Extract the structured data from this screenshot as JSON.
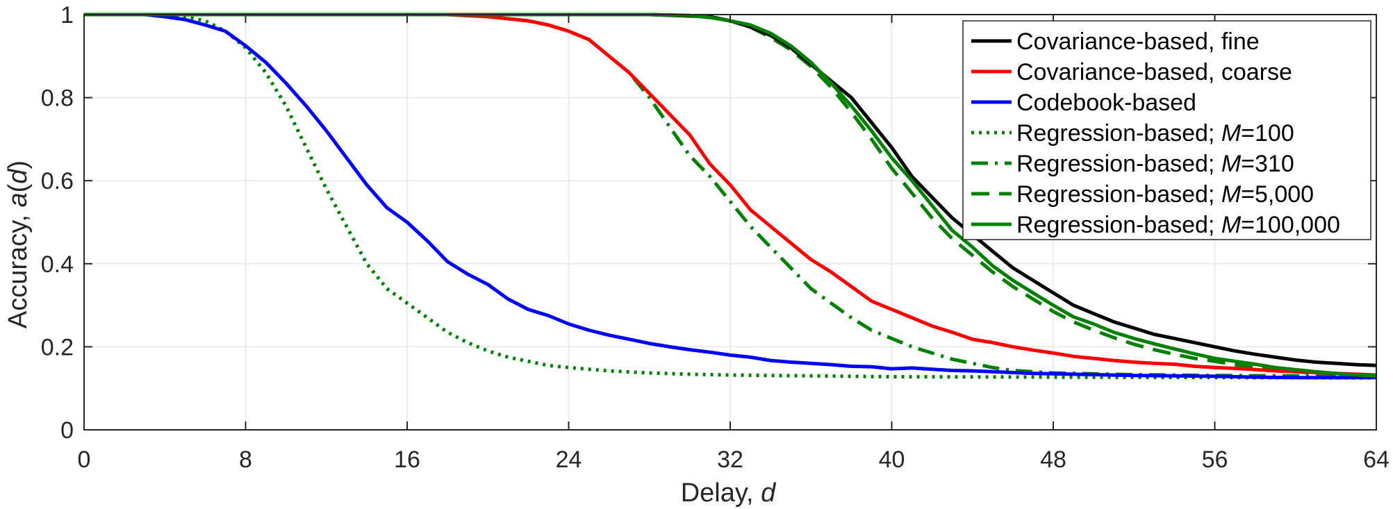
{
  "chart_data": {
    "type": "line",
    "xlabel": "Delay, ",
    "xlabel_italic": "d",
    "ylabel": "Accuracy, ",
    "ylabel_italic": "a",
    "ylabel_paren_open": "(",
    "ylabel_paren_arg": "d",
    "ylabel_paren_close": ")",
    "xlim": [
      0,
      64
    ],
    "ylim": [
      0,
      1
    ],
    "x_ticks": [
      0,
      8,
      16,
      24,
      32,
      40,
      48,
      56,
      64
    ],
    "x_tick_labels": [
      "0",
      "8",
      "16",
      "24",
      "32",
      "40",
      "48",
      "56",
      "64"
    ],
    "y_ticks": [
      0,
      0.2,
      0.4,
      0.6,
      0.8,
      1
    ],
    "y_tick_labels": [
      "0",
      "0.2",
      "0.4",
      "0.6",
      "0.8",
      "1"
    ],
    "grid": true,
    "legend_position": "top-right",
    "series": [
      {
        "name": "Covariance-based, fine",
        "name_italic": "",
        "name_suffix": "",
        "color": "#000000",
        "dash": "solid",
        "x": [
          0,
          20,
          28,
          31,
          32,
          33,
          34,
          35,
          36,
          37,
          38,
          39,
          40,
          41,
          42,
          43,
          44,
          45,
          46,
          47,
          48,
          49,
          50,
          51,
          52,
          53,
          54,
          55,
          56,
          57,
          58,
          59,
          60,
          61,
          62,
          63,
          64
        ],
        "y": [
          1,
          1,
          1,
          0.995,
          0.985,
          0.97,
          0.95,
          0.92,
          0.88,
          0.84,
          0.8,
          0.74,
          0.68,
          0.61,
          0.56,
          0.51,
          0.47,
          0.43,
          0.39,
          0.36,
          0.33,
          0.3,
          0.28,
          0.26,
          0.245,
          0.23,
          0.22,
          0.21,
          0.2,
          0.19,
          0.182,
          0.175,
          0.168,
          0.163,
          0.16,
          0.157,
          0.155
        ]
      },
      {
        "name": "Covariance-based, coarse",
        "name_italic": "",
        "name_suffix": "",
        "color": "#ff0000",
        "dash": "solid",
        "x": [
          0,
          18,
          20,
          22,
          23,
          24,
          25,
          26,
          27,
          28,
          29,
          30,
          31,
          32,
          33,
          34,
          35,
          36,
          37,
          38,
          39,
          40,
          41,
          42,
          43,
          44,
          45,
          46,
          47,
          48,
          49,
          50,
          51,
          52,
          53,
          54,
          55,
          56,
          57,
          58,
          59,
          60,
          61,
          62,
          63,
          64
        ],
        "y": [
          1,
          1,
          0.995,
          0.985,
          0.975,
          0.96,
          0.94,
          0.9,
          0.86,
          0.81,
          0.76,
          0.71,
          0.64,
          0.59,
          0.53,
          0.49,
          0.45,
          0.41,
          0.38,
          0.345,
          0.31,
          0.29,
          0.27,
          0.25,
          0.235,
          0.218,
          0.21,
          0.2,
          0.192,
          0.185,
          0.177,
          0.172,
          0.167,
          0.163,
          0.16,
          0.158,
          0.153,
          0.15,
          0.148,
          0.145,
          0.142,
          0.14,
          0.138,
          0.136,
          0.134,
          0.132
        ]
      },
      {
        "name": "Codebook-based",
        "name_italic": "",
        "name_suffix": "",
        "color": "#0000ff",
        "dash": "solid",
        "x": [
          0,
          3,
          4,
          5,
          6,
          7,
          8,
          9,
          10,
          11,
          12,
          13,
          14,
          15,
          16,
          17,
          18,
          19,
          20,
          21,
          22,
          23,
          24,
          25,
          26,
          27,
          28,
          29,
          30,
          31,
          32,
          33,
          34,
          35,
          36,
          37,
          38,
          39,
          40,
          41,
          42,
          43,
          44,
          45,
          46,
          47,
          48,
          50,
          52,
          54,
          56,
          58,
          60,
          62,
          64
        ],
        "y": [
          1,
          1,
          0.995,
          0.988,
          0.975,
          0.96,
          0.925,
          0.885,
          0.835,
          0.78,
          0.72,
          0.655,
          0.59,
          0.535,
          0.5,
          0.455,
          0.405,
          0.375,
          0.35,
          0.315,
          0.29,
          0.275,
          0.255,
          0.24,
          0.228,
          0.218,
          0.208,
          0.2,
          0.193,
          0.187,
          0.18,
          0.175,
          0.167,
          0.163,
          0.16,
          0.157,
          0.153,
          0.152,
          0.147,
          0.149,
          0.146,
          0.143,
          0.142,
          0.14,
          0.138,
          0.136,
          0.135,
          0.133,
          0.131,
          0.13,
          0.129,
          0.127,
          0.126,
          0.126,
          0.126
        ]
      },
      {
        "name": "Regression-based; ",
        "name_italic": "M",
        "name_suffix": "=100",
        "color": "#008000",
        "dash": "dotted",
        "x": [
          0,
          4,
          5,
          6,
          7,
          8,
          9,
          10,
          11,
          12,
          13,
          14,
          15,
          16,
          17,
          18,
          19,
          20,
          21,
          22,
          23,
          24,
          26,
          28,
          30,
          32,
          36,
          40,
          48,
          56,
          64
        ],
        "y": [
          1,
          1,
          0.995,
          0.985,
          0.96,
          0.92,
          0.86,
          0.78,
          0.68,
          0.58,
          0.49,
          0.4,
          0.34,
          0.305,
          0.27,
          0.235,
          0.21,
          0.19,
          0.175,
          0.165,
          0.155,
          0.15,
          0.142,
          0.137,
          0.134,
          0.132,
          0.13,
          0.128,
          0.127,
          0.126,
          0.125
        ]
      },
      {
        "name": "Regression-based; ",
        "name_italic": "M",
        "name_suffix": "=310",
        "color": "#008000",
        "dash": "dashdot",
        "x": [
          0,
          18,
          20,
          22,
          23,
          24,
          25,
          26,
          27,
          28,
          29,
          30,
          31,
          32,
          33,
          34,
          35,
          36,
          37,
          38,
          39,
          40,
          41,
          42,
          43,
          44,
          45,
          46,
          47,
          48,
          50,
          52,
          56,
          60,
          64
        ],
        "y": [
          1,
          1,
          0.995,
          0.985,
          0.975,
          0.96,
          0.94,
          0.9,
          0.86,
          0.8,
          0.73,
          0.66,
          0.61,
          0.55,
          0.49,
          0.44,
          0.39,
          0.34,
          0.305,
          0.27,
          0.24,
          0.22,
          0.2,
          0.185,
          0.17,
          0.16,
          0.15,
          0.143,
          0.14,
          0.137,
          0.135,
          0.133,
          0.131,
          0.13,
          0.128
        ]
      },
      {
        "name": "Regression-based; ",
        "name_italic": "M",
        "name_suffix": "=5,000",
        "color": "#008000",
        "dash": "dashed",
        "x": [
          0,
          28,
          30,
          31,
          32,
          33,
          34,
          35,
          36,
          37,
          38,
          39,
          40,
          41,
          42,
          43,
          44,
          45,
          46,
          47,
          48,
          49,
          50,
          51,
          52,
          53,
          54,
          55,
          56,
          57,
          58,
          59,
          60,
          61,
          62,
          63,
          64
        ],
        "y": [
          1,
          1,
          0.998,
          0.993,
          0.985,
          0.97,
          0.945,
          0.915,
          0.875,
          0.825,
          0.765,
          0.7,
          0.63,
          0.57,
          0.51,
          0.46,
          0.42,
          0.38,
          0.345,
          0.315,
          0.285,
          0.26,
          0.24,
          0.222,
          0.206,
          0.193,
          0.182,
          0.172,
          0.165,
          0.157,
          0.15,
          0.145,
          0.14,
          0.136,
          0.133,
          0.13,
          0.128
        ]
      },
      {
        "name": "Regression-based; ",
        "name_italic": "M",
        "name_suffix": "=100,000",
        "color": "#008000",
        "dash": "solid",
        "x": [
          0,
          28,
          30,
          31,
          32,
          33,
          34,
          35,
          36,
          37,
          38,
          39,
          40,
          41,
          42,
          43,
          44,
          45,
          46,
          47,
          48,
          49,
          50,
          51,
          52,
          53,
          54,
          55,
          56,
          57,
          58,
          59,
          60,
          61,
          62,
          63,
          64
        ],
        "y": [
          1,
          1,
          0.998,
          0.993,
          0.985,
          0.975,
          0.955,
          0.925,
          0.885,
          0.835,
          0.78,
          0.72,
          0.655,
          0.6,
          0.54,
          0.48,
          0.44,
          0.395,
          0.36,
          0.33,
          0.3,
          0.272,
          0.255,
          0.235,
          0.22,
          0.207,
          0.195,
          0.183,
          0.172,
          0.165,
          0.158,
          0.15,
          0.145,
          0.14,
          0.136,
          0.132,
          0.13
        ]
      }
    ]
  }
}
